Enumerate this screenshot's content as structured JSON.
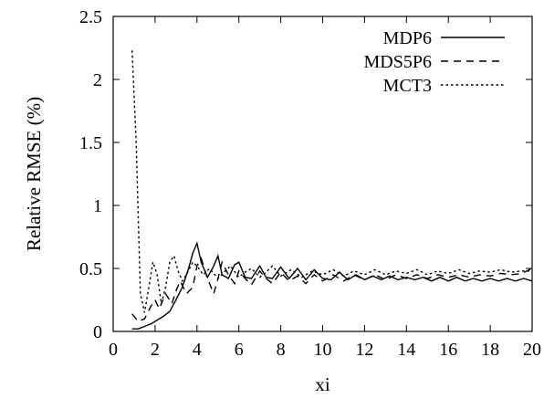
{
  "chart_data": {
    "type": "line",
    "title": "",
    "xlabel": "xi",
    "ylabel": "Relative RMSE (%)",
    "xlim": [
      0,
      20
    ],
    "ylim": [
      0,
      2.5
    ],
    "xticks": [
      "0",
      "2",
      "4",
      "6",
      "8",
      "10",
      "12",
      "14",
      "16",
      "18",
      "20"
    ],
    "yticks": [
      "0",
      "0.5",
      "1",
      "1.5",
      "2",
      "2.5"
    ],
    "grid": false,
    "legend_position": "top-right",
    "series": [
      {
        "name": "MDP6",
        "style": "solid",
        "color": "#000000",
        "x": [
          0.9,
          1.2,
          1.5,
          1.8,
          2.1,
          2.4,
          2.7,
          3.0,
          3.3,
          3.6,
          3.8,
          4.0,
          4.2,
          4.5,
          4.8,
          5.0,
          5.2,
          5.5,
          5.8,
          6.0,
          6.3,
          6.6,
          7.0,
          7.3,
          7.6,
          8.0,
          8.4,
          8.8,
          9.2,
          9.6,
          10.0,
          10.4,
          10.8,
          11.2,
          11.6,
          12.0,
          12.4,
          12.8,
          13.2,
          13.6,
          14.0,
          14.4,
          14.8,
          15.2,
          15.6,
          16.0,
          16.4,
          16.8,
          17.2,
          17.6,
          18.0,
          18.4,
          18.8,
          19.2,
          19.6,
          20.0
        ],
        "values": [
          0.02,
          0.02,
          0.04,
          0.06,
          0.09,
          0.12,
          0.16,
          0.25,
          0.35,
          0.5,
          0.62,
          0.7,
          0.55,
          0.43,
          0.52,
          0.6,
          0.45,
          0.42,
          0.53,
          0.55,
          0.43,
          0.42,
          0.52,
          0.43,
          0.42,
          0.51,
          0.42,
          0.5,
          0.41,
          0.49,
          0.42,
          0.41,
          0.47,
          0.41,
          0.45,
          0.41,
          0.44,
          0.41,
          0.44,
          0.41,
          0.43,
          0.41,
          0.43,
          0.4,
          0.43,
          0.4,
          0.43,
          0.4,
          0.42,
          0.4,
          0.42,
          0.4,
          0.42,
          0.4,
          0.42,
          0.4
        ]
      },
      {
        "name": "MDS5P6",
        "style": "dashed",
        "color": "#000000",
        "x": [
          0.9,
          1.2,
          1.5,
          1.8,
          2.0,
          2.2,
          2.5,
          2.8,
          3.0,
          3.2,
          3.5,
          3.8,
          4.0,
          4.2,
          4.5,
          4.8,
          5.0,
          5.2,
          5.5,
          5.8,
          6.0,
          6.3,
          6.6,
          7.0,
          7.3,
          7.6,
          8.0,
          8.4,
          8.8,
          9.2,
          9.6,
          10.0,
          10.5,
          11.0,
          11.5,
          12.0,
          12.5,
          13.0,
          13.5,
          14.0,
          14.5,
          15.0,
          15.5,
          16.0,
          16.5,
          17.0,
          17.5,
          18.0,
          18.5,
          19.0,
          19.5,
          20.0
        ],
        "values": [
          0.14,
          0.08,
          0.1,
          0.2,
          0.25,
          0.18,
          0.3,
          0.22,
          0.32,
          0.4,
          0.3,
          0.35,
          0.52,
          0.58,
          0.42,
          0.3,
          0.42,
          0.55,
          0.45,
          0.38,
          0.48,
          0.42,
          0.37,
          0.48,
          0.42,
          0.38,
          0.47,
          0.4,
          0.44,
          0.38,
          0.45,
          0.4,
          0.45,
          0.4,
          0.45,
          0.41,
          0.45,
          0.41,
          0.45,
          0.42,
          0.45,
          0.42,
          0.45,
          0.43,
          0.45,
          0.43,
          0.45,
          0.44,
          0.46,
          0.45,
          0.46,
          0.5
        ]
      },
      {
        "name": "MCT3",
        "style": "dotted",
        "color": "#000000",
        "x": [
          0.9,
          1.1,
          1.3,
          1.5,
          1.7,
          1.9,
          2.1,
          2.3,
          2.5,
          2.7,
          2.9,
          3.1,
          3.3,
          3.5,
          3.8,
          4.0,
          4.3,
          4.6,
          5.0,
          5.3,
          5.6,
          6.0,
          6.3,
          6.6,
          7.0,
          7.3,
          7.6,
          8.0,
          8.5,
          9.0,
          9.5,
          10.0,
          10.5,
          11.0,
          11.5,
          12.0,
          12.5,
          13.0,
          13.5,
          14.0,
          14.5,
          15.0,
          15.5,
          16.0,
          16.5,
          17.0,
          17.5,
          18.0,
          18.5,
          19.0,
          19.5,
          20.0
        ],
        "values": [
          2.23,
          1.5,
          0.3,
          0.15,
          0.35,
          0.55,
          0.45,
          0.22,
          0.35,
          0.55,
          0.6,
          0.48,
          0.4,
          0.45,
          0.55,
          0.52,
          0.45,
          0.5,
          0.42,
          0.47,
          0.52,
          0.43,
          0.47,
          0.5,
          0.43,
          0.47,
          0.52,
          0.44,
          0.49,
          0.43,
          0.48,
          0.45,
          0.49,
          0.44,
          0.48,
          0.45,
          0.49,
          0.45,
          0.48,
          0.46,
          0.49,
          0.45,
          0.48,
          0.46,
          0.49,
          0.46,
          0.48,
          0.47,
          0.49,
          0.47,
          0.48,
          0.48
        ]
      }
    ]
  }
}
